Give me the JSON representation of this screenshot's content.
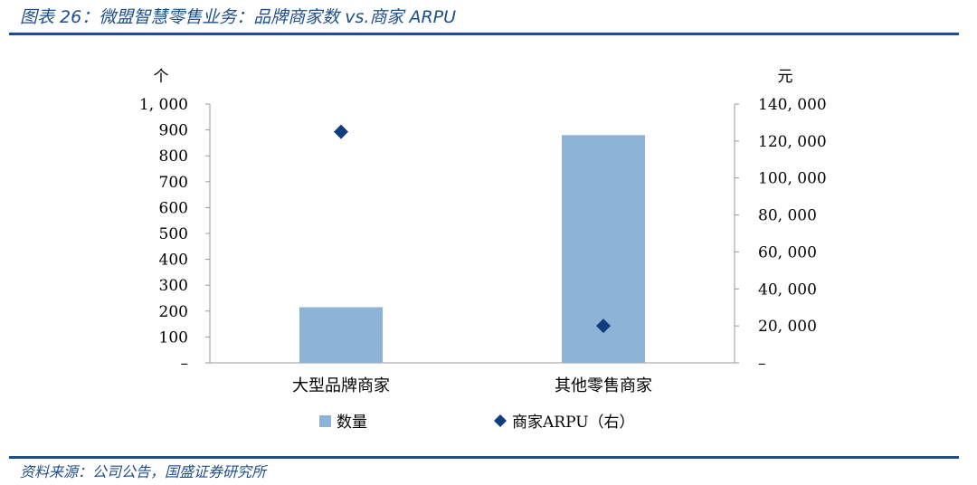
{
  "header": {
    "title": "图表 26：微盟智慧零售业务：品牌商家数 vs.商家 ARPU"
  },
  "footer": {
    "source": "资料来源：公司公告，国盛证券研究所"
  },
  "colors": {
    "accent": "#1f4e8c",
    "bar": "#8db3d6",
    "marker": "#0f3d80",
    "axis": "#999999"
  },
  "chart_data": {
    "type": "bar",
    "categories": [
      "大型品牌商家",
      "其他零售商家"
    ],
    "series": [
      {
        "name": "数量",
        "type": "bar",
        "axis": "left",
        "values": [
          215,
          880
        ]
      },
      {
        "name": "商家ARPU（右）",
        "type": "scatter",
        "marker": "diamond",
        "axis": "right",
        "values": [
          125000,
          20000
        ]
      }
    ],
    "y_left": {
      "unit": "个",
      "ylim": [
        0,
        1000
      ],
      "ticks": [
        0,
        100,
        200,
        300,
        400,
        500,
        600,
        700,
        800,
        900,
        1000
      ],
      "tick_labels": [
        "–",
        "100",
        "200",
        "300",
        "400",
        "500",
        "600",
        "700",
        "800",
        "900",
        "1, 000"
      ]
    },
    "y_right": {
      "unit": "元",
      "ylim": [
        0,
        140000
      ],
      "ticks": [
        0,
        20000,
        40000,
        60000,
        80000,
        100000,
        120000,
        140000
      ],
      "tick_labels": [
        "–",
        "20, 000",
        "40, 000",
        "60, 000",
        "80, 000",
        "100, 000",
        "120, 000",
        "140, 000"
      ]
    },
    "grid": false,
    "legend": "bottom"
  }
}
